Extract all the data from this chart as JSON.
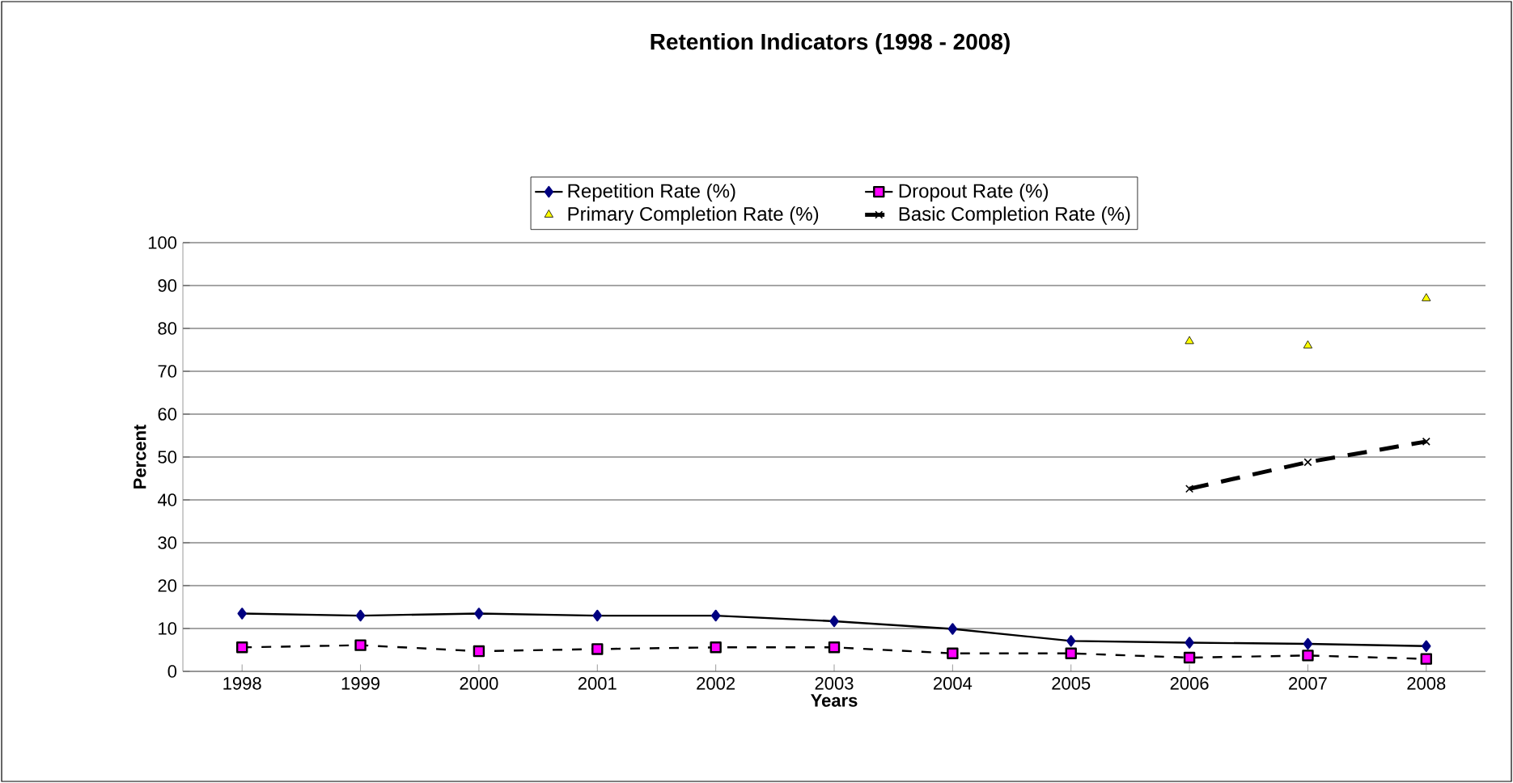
{
  "chart_data": {
    "type": "line",
    "title": "Retention Indicators (1998 - 2008)",
    "xlabel": "Years",
    "ylabel": "Percent",
    "categories": [
      "1998",
      "1999",
      "2000",
      "2001",
      "2002",
      "2003",
      "2004",
      "2005",
      "2006",
      "2007",
      "2008"
    ],
    "ylim": [
      0,
      100
    ],
    "yticks": [
      0,
      10,
      20,
      30,
      40,
      50,
      60,
      70,
      80,
      90,
      100
    ],
    "grid": "y",
    "legend": "top",
    "series": [
      {
        "name": "Repetition Rate (%)",
        "color": "#000080",
        "marker": "diamond",
        "line_style": "solid",
        "values": [
          13.5,
          13,
          13.5,
          13,
          13,
          11.7,
          9.9,
          7.1,
          6.7,
          6.4,
          5.9
        ]
      },
      {
        "name": "Dropout Rate (%)",
        "color": "#ff00ff",
        "marker": "square",
        "line_style": "dashed",
        "values": [
          5.6,
          6.1,
          4.7,
          5.2,
          5.6,
          5.6,
          4.2,
          4.2,
          3.2,
          3.7,
          2.9
        ]
      },
      {
        "name": "Primary Completion Rate (%)",
        "type": "scatter",
        "color": "#ffff00",
        "marker": "triangle",
        "values": [
          null,
          null,
          null,
          null,
          null,
          null,
          null,
          null,
          77,
          76,
          87
        ]
      },
      {
        "name": "Basic Completion Rate (%)",
        "color": "#000000",
        "marker": "cross",
        "line_style": "dashed",
        "values": [
          null,
          null,
          null,
          null,
          null,
          null,
          null,
          null,
          42.6,
          48.8,
          53.6
        ]
      }
    ]
  }
}
